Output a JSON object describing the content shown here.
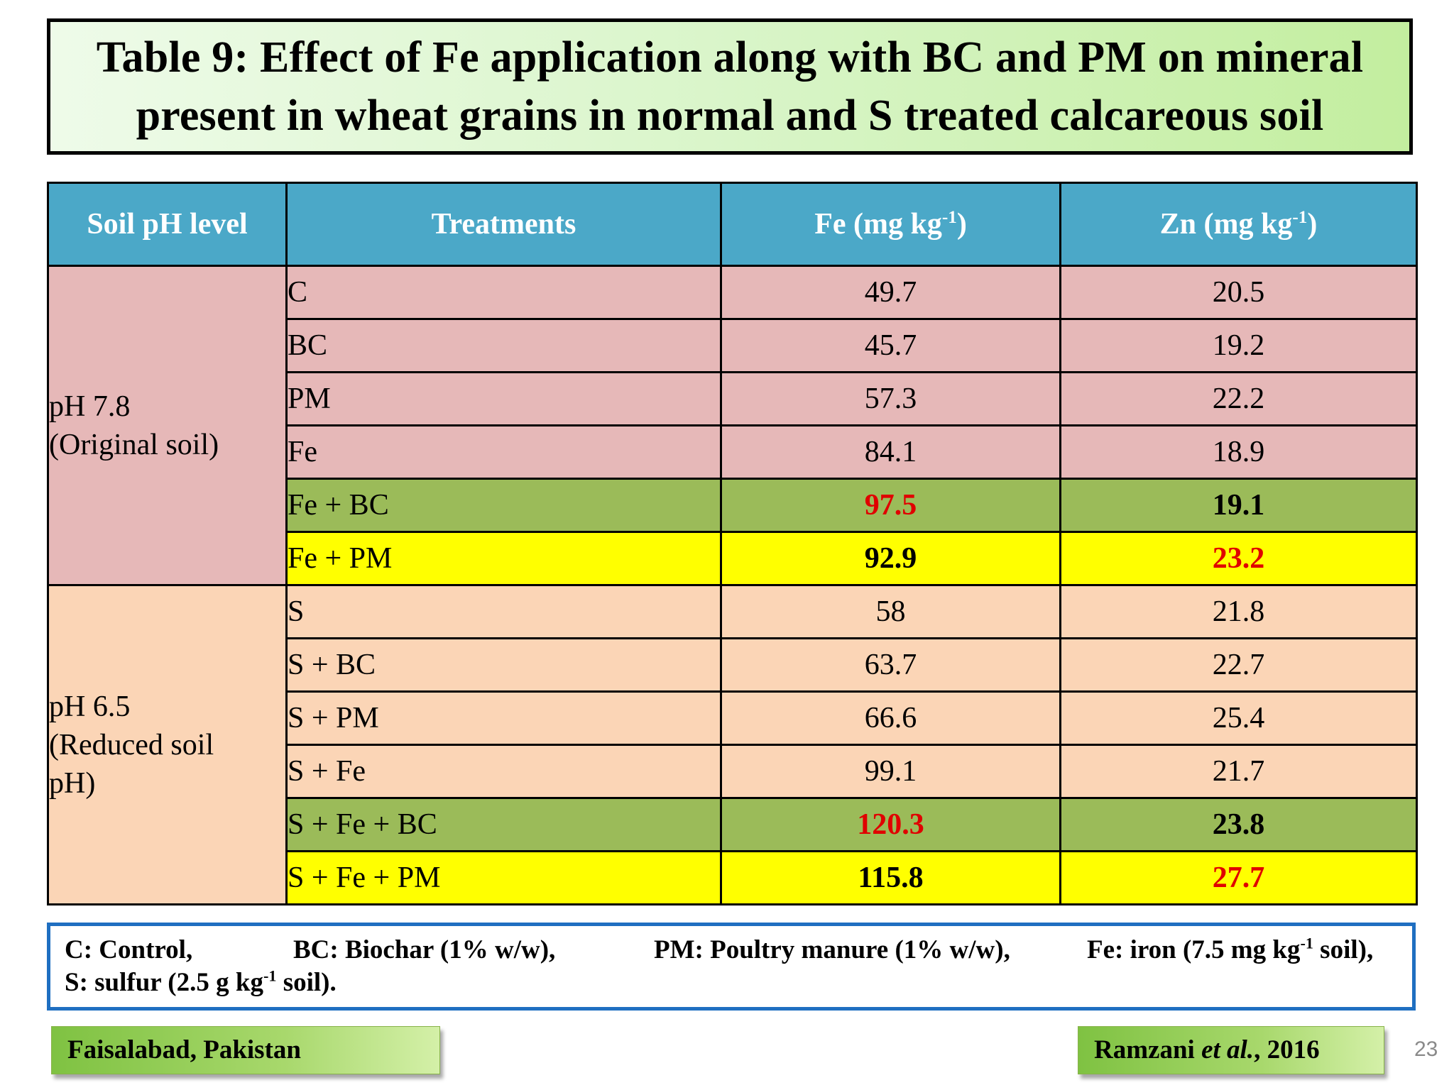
{
  "title": {
    "line1": "Table 9: Effect of Fe application along with BC and PM on mineral",
    "line2": "present in wheat grains in normal and S treated calcareous soil"
  },
  "table": {
    "headers": {
      "soil_ph": "Soil pH level",
      "treatments": "Treatments",
      "fe_prefix": "Fe (mg kg",
      "fe_sup": "-1",
      "fe_suffix": ")",
      "zn_prefix": "Zn (mg kg",
      "zn_sup": "-1",
      "zn_suffix": ")"
    },
    "groups": [
      {
        "ph_line1": "pH 7.8",
        "ph_line2": "(Original soil)",
        "color": "#e6b8b8",
        "rows": [
          {
            "treatment": "C",
            "fe": "49.7",
            "zn": "20.5"
          },
          {
            "treatment": "BC",
            "fe": "45.7",
            "zn": "19.2"
          },
          {
            "treatment": "PM",
            "fe": "57.3",
            "zn": "22.2"
          },
          {
            "treatment": "Fe",
            "fe": "84.1",
            "zn": "18.9"
          },
          {
            "treatment": "Fe + BC",
            "fe": "97.5",
            "zn": "19.1"
          },
          {
            "treatment": "Fe + PM",
            "fe": "92.9",
            "zn": "23.2"
          }
        ]
      },
      {
        "ph_line1": "pH 6.5",
        "ph_line2": "(Reduced soil",
        "ph_line3": "pH)",
        "color": "#fbd5b6",
        "rows": [
          {
            "treatment": "S",
            "fe": "58",
            "zn": "21.8"
          },
          {
            "treatment": "S + BC",
            "fe": "63.7",
            "zn": "22.7"
          },
          {
            "treatment": "S + PM",
            "fe": "66.6",
            "zn": "25.4"
          },
          {
            "treatment": "S + Fe",
            "fe": "99.1",
            "zn": "21.7"
          },
          {
            "treatment": "S + Fe + BC",
            "fe": "120.3",
            "zn": "23.8"
          },
          {
            "treatment": "S + Fe + PM",
            "fe": "115.8",
            "zn": "27.7"
          }
        ]
      }
    ],
    "highlight_colors": {
      "fe_bc_row": "#9bbb59",
      "fe_pm_row": "#ffff00",
      "max_value_text": "#e00000"
    }
  },
  "legend": {
    "control": "C: Control,",
    "biochar": "BC: Biochar (1% w/w),",
    "poultry": "PM: Poultry manure (1% w/w),",
    "iron_prefix": "Fe: iron (7.5 mg kg",
    "iron_sup": "-1",
    "iron_suffix": " soil),",
    "sulfur_prefix": "S: sulfur (2.5 g kg",
    "sulfur_sup": "-1",
    "sulfur_suffix": " soil)."
  },
  "footer": {
    "location": "Faisalabad, Pakistan",
    "citation_author": "Ramzani ",
    "citation_etal": "et al.",
    "citation_year": ", 2016",
    "page_number": "23"
  }
}
